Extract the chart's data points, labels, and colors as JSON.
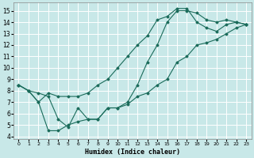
{
  "xlabel": "Humidex (Indice chaleur)",
  "bg_color": "#c8e8e8",
  "grid_color": "#ffffff",
  "line_color": "#1a6b5a",
  "xlim": [
    -0.5,
    23.5
  ],
  "ylim": [
    3.8,
    15.7
  ],
  "xticks": [
    0,
    1,
    2,
    3,
    4,
    5,
    6,
    7,
    8,
    9,
    10,
    11,
    12,
    13,
    14,
    15,
    16,
    17,
    18,
    19,
    20,
    21,
    22,
    23
  ],
  "yticks": [
    4,
    5,
    6,
    7,
    8,
    9,
    10,
    11,
    12,
    13,
    14,
    15
  ],
  "line1_x": [
    0,
    1,
    2,
    3,
    4,
    5,
    6,
    7,
    8,
    9,
    10,
    11,
    12,
    13,
    14,
    15,
    16,
    17,
    18,
    19,
    20,
    21,
    22,
    23
  ],
  "line1_y": [
    8.5,
    8.0,
    7.8,
    7.5,
    5.5,
    4.8,
    6.5,
    5.5,
    5.5,
    6.5,
    6.5,
    7.0,
    8.5,
    10.5,
    12.0,
    14.0,
    15.0,
    15.0,
    14.8,
    14.2,
    14.0,
    14.2,
    14.0,
    13.8
  ],
  "line2_x": [
    0,
    1,
    2,
    3,
    4,
    5,
    6,
    7,
    8,
    9,
    10,
    11,
    12,
    13,
    14,
    15,
    16,
    17,
    18,
    19,
    20,
    21,
    22,
    23
  ],
  "line2_y": [
    8.5,
    8.0,
    7.0,
    4.5,
    4.5,
    5.0,
    5.3,
    5.5,
    5.5,
    6.5,
    6.5,
    6.8,
    7.5,
    7.8,
    8.5,
    9.0,
    10.5,
    11.0,
    12.0,
    12.2,
    12.5,
    13.0,
    13.5,
    13.8
  ],
  "line3_x": [
    0,
    1,
    2,
    3,
    4,
    5,
    6,
    7,
    8,
    9,
    10,
    11,
    12,
    13,
    14,
    15,
    16,
    17,
    18,
    19,
    20,
    21,
    22,
    23
  ],
  "line3_y": [
    8.5,
    8.0,
    7.0,
    7.8,
    7.5,
    7.5,
    7.5,
    7.8,
    8.5,
    9.0,
    10.0,
    11.0,
    12.0,
    12.8,
    14.2,
    14.5,
    15.2,
    15.2,
    14.0,
    13.5,
    13.2,
    13.8,
    14.0,
    13.8
  ]
}
